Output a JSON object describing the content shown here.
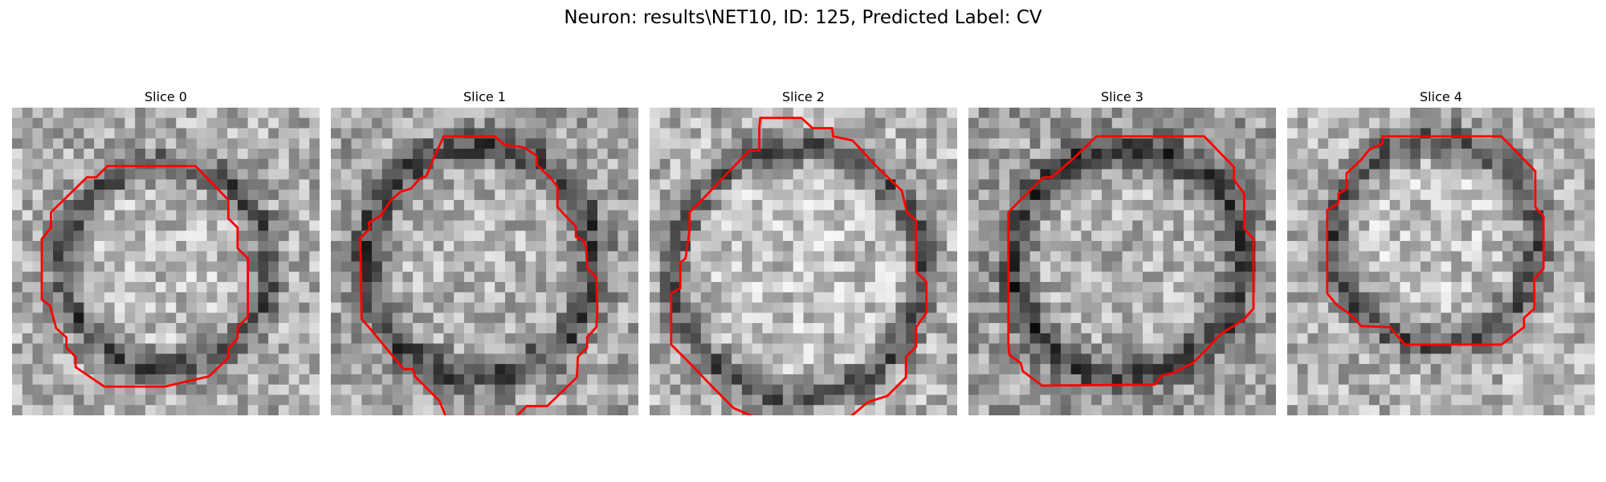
{
  "figure": {
    "title": "Neuron: results\\NET10, ID: 125, Predicted Label: CV",
    "contour_color": "#ff0000",
    "colormap": "gray",
    "grid_size": 30
  },
  "slices": [
    {
      "title": "Slice 0",
      "contour": [
        [
          9.3,
          5.7
        ],
        [
          17.9,
          5.7
        ],
        [
          21.1,
          9.0
        ],
        [
          21.1,
          10.8
        ],
        [
          22.0,
          11.7
        ],
        [
          22.0,
          13.7
        ],
        [
          23.0,
          14.7
        ],
        [
          23.0,
          20.4
        ],
        [
          22.0,
          21.4
        ],
        [
          22.0,
          22.5
        ],
        [
          21.1,
          23.5
        ],
        [
          21.1,
          24.4
        ],
        [
          19.2,
          26.2
        ],
        [
          14.9,
          27.2
        ],
        [
          9.0,
          27.2
        ],
        [
          6.2,
          25.3
        ],
        [
          6.2,
          24.3
        ],
        [
          5.3,
          23.4
        ],
        [
          5.3,
          22.4
        ],
        [
          4.3,
          21.5
        ],
        [
          3.7,
          19.3
        ],
        [
          2.9,
          18.7
        ],
        [
          2.9,
          12.8
        ],
        [
          3.8,
          11.7
        ],
        [
          3.8,
          10.2
        ],
        [
          7.3,
          6.8
        ],
        [
          7.3,
          6.8
        ],
        [
          8.2,
          6.8
        ]
      ]
    },
    {
      "title": "Slice 1",
      "contour": [
        [
          11.0,
          2.8
        ],
        [
          16.0,
          2.8
        ],
        [
          16.9,
          3.6
        ],
        [
          18.9,
          3.9
        ],
        [
          20.1,
          4.7
        ],
        [
          20.1,
          5.6
        ],
        [
          21.4,
          6.8
        ],
        [
          22.1,
          7.7
        ],
        [
          22.1,
          9.7
        ],
        [
          23.9,
          11.6
        ],
        [
          23.9,
          12.6
        ],
        [
          24.6,
          12.9
        ],
        [
          24.9,
          13.6
        ],
        [
          25.0,
          15.6
        ],
        [
          25.9,
          16.6
        ],
        [
          26.0,
          19.6
        ],
        [
          25.9,
          21.4
        ],
        [
          25.0,
          22.4
        ],
        [
          25.0,
          23.4
        ],
        [
          24.1,
          24.3
        ],
        [
          24.0,
          26.3
        ],
        [
          21.1,
          29.1
        ],
        [
          19.1,
          29.1
        ],
        [
          18.1,
          30.1
        ],
        [
          11.2,
          30.1
        ],
        [
          10.6,
          28.6
        ],
        [
          8.2,
          26.2
        ],
        [
          8.0,
          25.5
        ],
        [
          7.1,
          25.5
        ],
        [
          3.7,
          21.4
        ],
        [
          3.0,
          20.6
        ],
        [
          2.9,
          14.2
        ],
        [
          2.8,
          12.8
        ],
        [
          3.8,
          11.8
        ],
        [
          3.7,
          11.2
        ],
        [
          4.8,
          10.6
        ],
        [
          5.9,
          9.0
        ],
        [
          6.8,
          8.2
        ],
        [
          7.8,
          7.9
        ],
        [
          8.7,
          6.9
        ],
        [
          9.3,
          6.7
        ],
        [
          10.1,
          4.8
        ]
      ]
    },
    {
      "title": "Slice 2",
      "contour": [
        [
          10.8,
          1.0
        ],
        [
          14.8,
          1.0
        ],
        [
          15.9,
          2.0
        ],
        [
          17.8,
          2.0
        ],
        [
          17.9,
          2.8
        ],
        [
          19.8,
          3.2
        ],
        [
          22.1,
          5.7
        ],
        [
          24.6,
          8.1
        ],
        [
          25.1,
          10.2
        ],
        [
          26.0,
          11.0
        ],
        [
          26.0,
          16.0
        ],
        [
          27.0,
          17.0
        ],
        [
          27.0,
          20.0
        ],
        [
          26.0,
          21.4
        ],
        [
          26.0,
          23.3
        ],
        [
          25.0,
          24.3
        ],
        [
          25.0,
          26.3
        ],
        [
          23.2,
          28.1
        ],
        [
          21.3,
          28.7
        ],
        [
          18.8,
          30.8
        ],
        [
          17.1,
          31.0
        ],
        [
          17.1,
          31.0
        ],
        [
          10.8,
          31.0
        ],
        [
          10.1,
          30.1
        ],
        [
          8.2,
          29.3
        ],
        [
          6.2,
          27.3
        ],
        [
          4.1,
          25.1
        ],
        [
          2.1,
          23.1
        ],
        [
          2.1,
          18.1
        ],
        [
          3.0,
          17.6
        ],
        [
          3.0,
          15.1
        ],
        [
          3.5,
          14.7
        ],
        [
          3.9,
          12.0
        ],
        [
          3.9,
          10.2
        ],
        [
          5.1,
          9.0
        ],
        [
          9.7,
          4.2
        ],
        [
          10.7,
          4.2
        ],
        [
          10.7,
          1.9
        ]
      ]
    },
    {
      "title": "Slice 3",
      "contour": [
        [
          12.5,
          2.8
        ],
        [
          23.0,
          2.8
        ],
        [
          25.9,
          5.8
        ],
        [
          25.9,
          7.0
        ],
        [
          26.9,
          8.4
        ],
        [
          26.9,
          11.8
        ],
        [
          27.8,
          12.8
        ],
        [
          27.8,
          19.6
        ],
        [
          26.9,
          20.6
        ],
        [
          26.0,
          21.2
        ],
        [
          24.7,
          22.0
        ],
        [
          23.0,
          23.8
        ],
        [
          21.9,
          24.9
        ],
        [
          19.9,
          25.9
        ],
        [
          18.9,
          26.1
        ],
        [
          18.2,
          27.0
        ],
        [
          7.2,
          27.1
        ],
        [
          5.3,
          25.7
        ],
        [
          5.1,
          24.9
        ],
        [
          4.0,
          24.1
        ],
        [
          3.9,
          23.0
        ],
        [
          3.9,
          10.2
        ],
        [
          7.3,
          6.8
        ],
        [
          8.1,
          6.8
        ],
        [
          10.2,
          5.0
        ]
      ]
    },
    {
      "title": "Slice 4",
      "contour": [
        [
          9.3,
          2.8
        ],
        [
          20.9,
          2.8
        ],
        [
          24.2,
          6.2
        ],
        [
          24.2,
          9.7
        ],
        [
          25.0,
          10.6
        ],
        [
          25.0,
          15.7
        ],
        [
          24.1,
          16.7
        ],
        [
          24.1,
          19.6
        ],
        [
          23.1,
          20.5
        ],
        [
          23.1,
          21.4
        ],
        [
          20.9,
          23.1
        ],
        [
          11.5,
          23.1
        ],
        [
          10.0,
          21.4
        ],
        [
          7.2,
          21.3
        ],
        [
          6.2,
          20.2
        ],
        [
          4.8,
          19.2
        ],
        [
          3.9,
          18.1
        ],
        [
          3.9,
          10.0
        ],
        [
          5.0,
          9.3
        ],
        [
          5.0,
          8.4
        ],
        [
          5.8,
          7.9
        ],
        [
          5.8,
          6.4
        ],
        [
          7.2,
          5.1
        ],
        [
          8.0,
          4.1
        ],
        [
          9.3,
          3.5
        ]
      ]
    }
  ]
}
